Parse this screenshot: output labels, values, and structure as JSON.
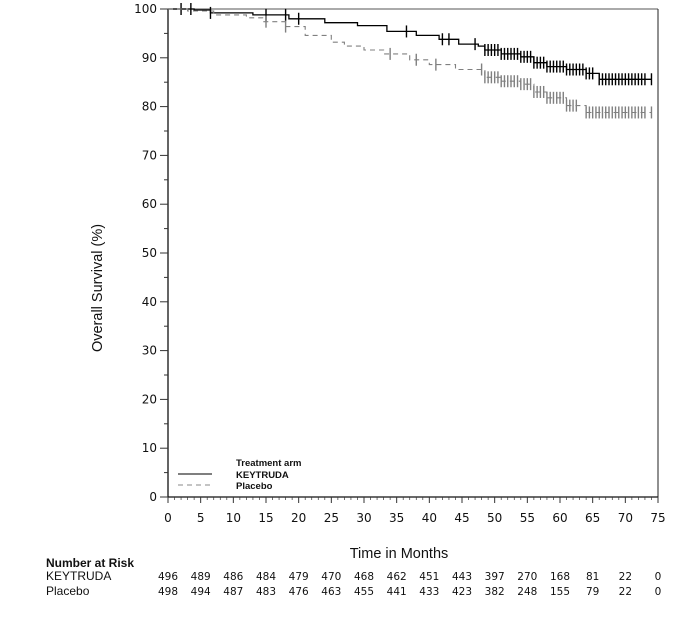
{
  "chart_data": {
    "type": "line",
    "subtype": "kaplan-meier",
    "title": "",
    "xlabel": "Time in Months",
    "ylabel": "Overall Survival (%)",
    "xlim": [
      0,
      75
    ],
    "ylim": [
      0,
      100
    ],
    "x_ticks": [
      0,
      5,
      10,
      15,
      20,
      25,
      30,
      35,
      40,
      45,
      50,
      55,
      60,
      65,
      70,
      75
    ],
    "y_ticks": [
      0,
      10,
      20,
      30,
      40,
      50,
      60,
      70,
      80,
      90,
      100
    ],
    "grid": false,
    "legend": {
      "title": "Treatment arm",
      "placement": "bottom-left",
      "entries": [
        {
          "name": "KEYTRUDA",
          "style": "solid",
          "color": "#000000"
        },
        {
          "name": "Placebo",
          "style": "dashed",
          "color": "#808080"
        }
      ]
    },
    "series": [
      {
        "name": "KEYTRUDA",
        "color": "#000000",
        "style": "solid",
        "points": [
          [
            0,
            100
          ],
          [
            4,
            99.8
          ],
          [
            6.5,
            99.2
          ],
          [
            13,
            98.8
          ],
          [
            18.5,
            98.0
          ],
          [
            24,
            97.2
          ],
          [
            29,
            96.6
          ],
          [
            33.5,
            95.4
          ],
          [
            38,
            94.6
          ],
          [
            41.5,
            93.8
          ],
          [
            44.5,
            92.8
          ],
          [
            47.5,
            92.4
          ],
          [
            48.5,
            91.6
          ],
          [
            51,
            90.8
          ],
          [
            54,
            90.2
          ],
          [
            56,
            89.0
          ],
          [
            58,
            88.2
          ],
          [
            61,
            87.6
          ],
          [
            64,
            86.8
          ],
          [
            66,
            85.6
          ],
          [
            74,
            85.6
          ]
        ],
        "censor_times": [
          2,
          3.5,
          6.5,
          15,
          18,
          20,
          36.5,
          42,
          43,
          47,
          48.5,
          49,
          49.5,
          50,
          50.5,
          51,
          51.5,
          52,
          52.5,
          53,
          53.5,
          54,
          54.5,
          55,
          55.5,
          56,
          56.5,
          57,
          57.5,
          58,
          58.5,
          59,
          59.5,
          60,
          60.5,
          61,
          61.5,
          62,
          62.5,
          63,
          63.5,
          64,
          64.5,
          65,
          66,
          66.5,
          67,
          67.5,
          68,
          68.5,
          69,
          69.5,
          70,
          70.5,
          71,
          71.5,
          72,
          72.5,
          73,
          74
        ]
      },
      {
        "name": "Placebo",
        "color": "#808080",
        "style": "dashed",
        "points": [
          [
            0,
            100
          ],
          [
            3,
            99.6
          ],
          [
            7,
            98.8
          ],
          [
            12,
            98.2
          ],
          [
            14.5,
            97.4
          ],
          [
            18,
            96.4
          ],
          [
            21,
            94.6
          ],
          [
            25,
            93.2
          ],
          [
            27,
            92.4
          ],
          [
            30,
            91.6
          ],
          [
            33,
            90.8
          ],
          [
            37,
            89.6
          ],
          [
            40,
            88.6
          ],
          [
            44,
            87.6
          ],
          [
            48.5,
            86.0
          ],
          [
            51,
            85.2
          ],
          [
            54,
            84.6
          ],
          [
            56,
            83.0
          ],
          [
            58,
            81.8
          ],
          [
            61,
            80.2
          ],
          [
            64,
            78.8
          ],
          [
            74,
            78.8
          ]
        ],
        "censor_times": [
          15,
          18,
          34,
          38,
          41,
          48,
          48.5,
          49,
          49.5,
          50,
          50.5,
          51,
          51.5,
          52,
          52.5,
          53,
          53.5,
          54,
          54.5,
          55,
          55.5,
          56,
          56.5,
          57,
          57.5,
          58,
          58.5,
          59,
          59.5,
          60,
          60.5,
          61,
          61.5,
          62,
          62.5,
          64,
          64.5,
          65,
          65.5,
          66,
          66.5,
          67,
          67.5,
          68,
          68.5,
          69,
          69.5,
          70,
          70.5,
          71,
          71.5,
          72,
          72.5,
          73,
          74
        ]
      }
    ],
    "risk_table": {
      "title": "Number at Risk",
      "times": [
        0,
        5,
        10,
        15,
        20,
        25,
        30,
        35,
        40,
        45,
        50,
        55,
        60,
        65,
        70,
        75
      ],
      "rows": [
        {
          "label": "KEYTRUDA",
          "values": [
            496,
            489,
            486,
            484,
            479,
            470,
            468,
            462,
            451,
            443,
            397,
            270,
            168,
            81,
            22,
            0
          ]
        },
        {
          "label": "Placebo",
          "values": [
            498,
            494,
            487,
            483,
            476,
            463,
            455,
            441,
            433,
            423,
            382,
            248,
            155,
            79,
            22,
            0
          ]
        }
      ]
    }
  }
}
